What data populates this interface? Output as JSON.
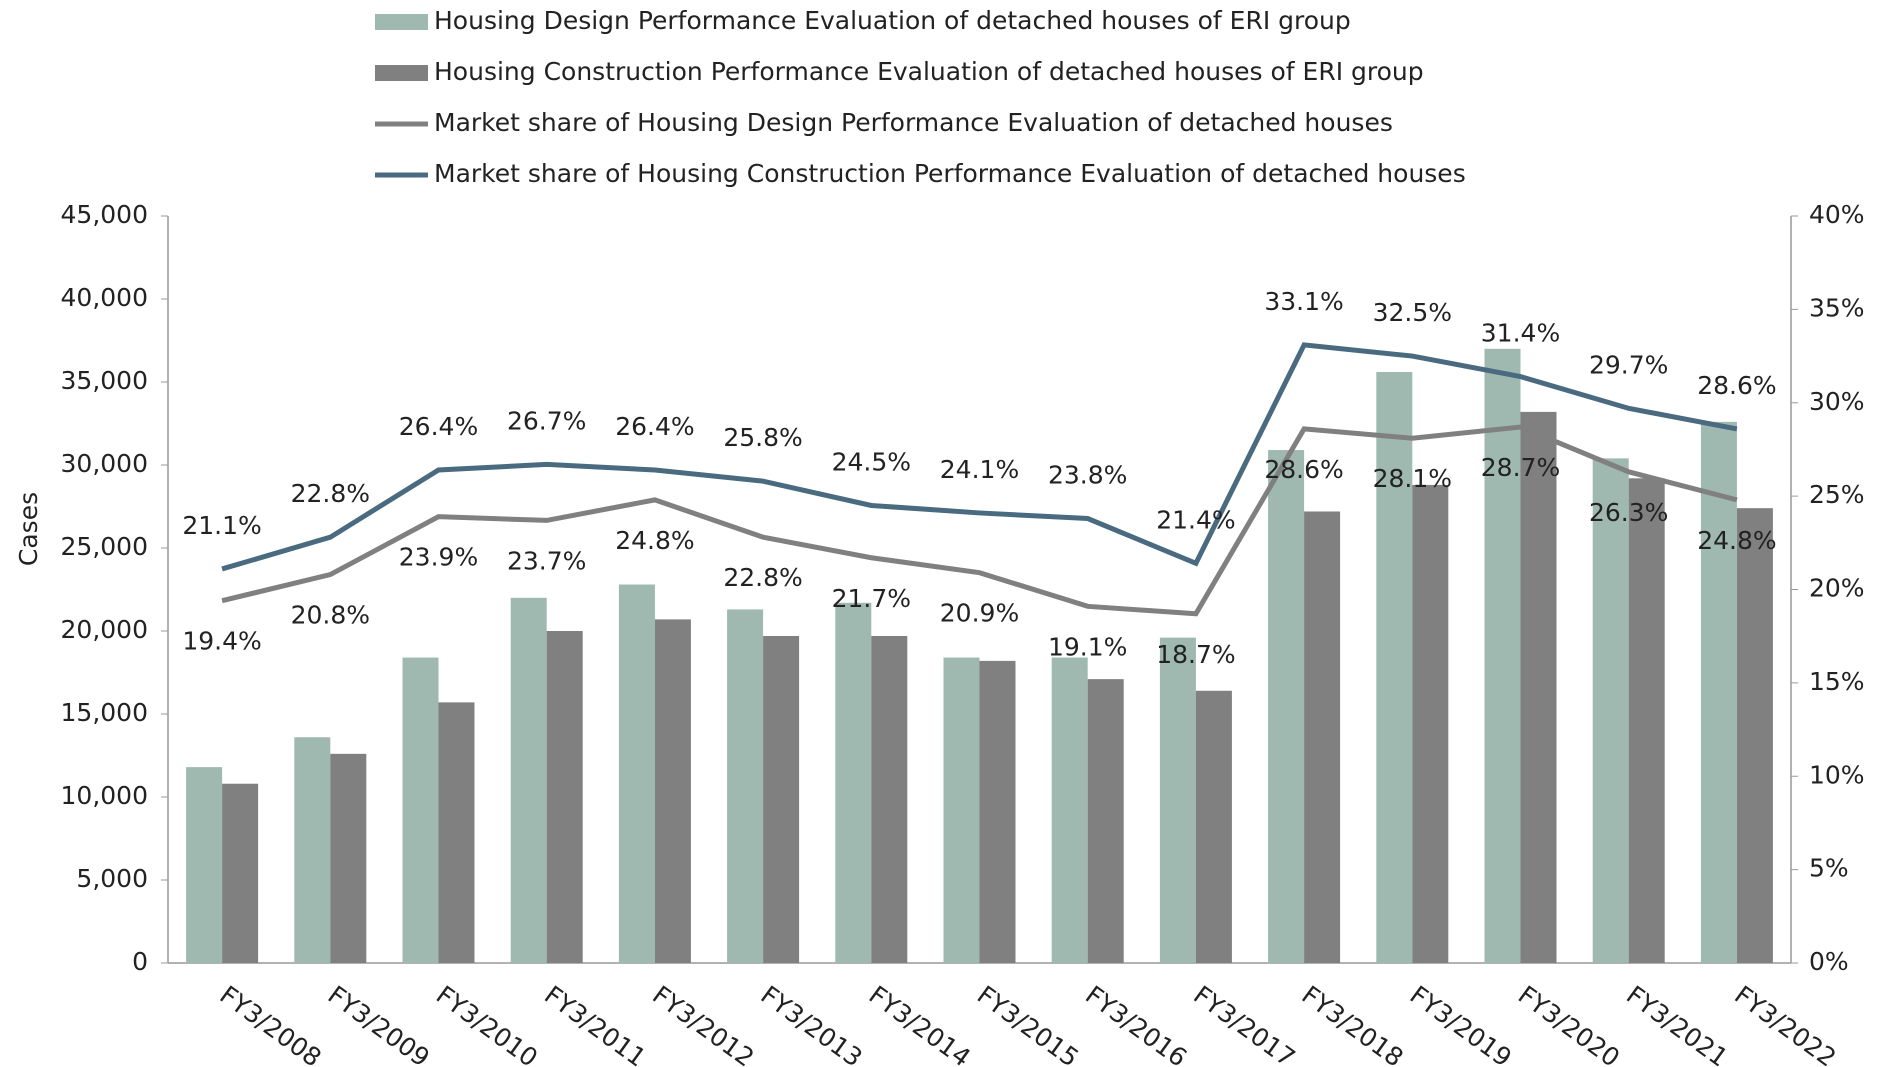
{
  "chart_data": {
    "type": "bar",
    "y_label": "Cases",
    "categories": [
      "FY3/2008",
      "FY3/2009",
      "FY3/2010",
      "FY3/2011",
      "FY3/2012",
      "FY3/2013",
      "FY3/2014",
      "FY3/2015",
      "FY3/2016",
      "FY3/2017",
      "FY3/2018",
      "FY3/2019",
      "FY3/2020",
      "FY3/2021",
      "FY3/2022"
    ],
    "series": [
      {
        "name": "Housing Design Performance Evaluation of detached houses of ERI group",
        "type": "bar",
        "color": "#9fb8b0",
        "values": [
          11800,
          13600,
          18400,
          22000,
          22800,
          21300,
          21700,
          18400,
          18400,
          19600,
          30900,
          35600,
          37000,
          30400,
          32600
        ]
      },
      {
        "name": "Housing Construction Performance Evaluation of detached houses of ERI group",
        "type": "bar",
        "color": "#808080",
        "values": [
          10800,
          12600,
          15700,
          20000,
          20700,
          19700,
          19700,
          18200,
          17100,
          16400,
          27200,
          28800,
          33200,
          29200,
          27400
        ]
      },
      {
        "name": "Market share of Housing Design Performance Evaluation of detached houses",
        "type": "line",
        "axis": "y2",
        "color": "#808080",
        "label_side": "below",
        "values": [
          19.4,
          20.8,
          23.9,
          23.7,
          24.8,
          22.8,
          21.7,
          20.9,
          19.1,
          18.7,
          28.6,
          28.1,
          28.7,
          26.3,
          24.8
        ],
        "value_labels": [
          "19.4%",
          "20.8%",
          "23.9%",
          "23.7%",
          "24.8%",
          "22.8%",
          "21.7%",
          "20.9%",
          "19.1%",
          "18.7%",
          "28.6%",
          "28.1%",
          "28.7%",
          "26.3%",
          "24.8%"
        ]
      },
      {
        "name": "Market share of Housing Construction Performance Evaluation of detached houses",
        "type": "line",
        "axis": "y2",
        "color": "#4a6a80",
        "label_side": "above",
        "values": [
          21.1,
          22.8,
          26.4,
          26.7,
          26.4,
          25.8,
          24.5,
          24.1,
          23.8,
          21.4,
          33.1,
          32.5,
          31.4,
          29.7,
          28.6
        ],
        "value_labels": [
          "21.1%",
          "22.8%",
          "26.4%",
          "26.7%",
          "26.4%",
          "25.8%",
          "24.5%",
          "24.1%",
          "23.8%",
          "21.4%",
          "33.1%",
          "32.5%",
          "31.4%",
          "29.7%",
          "28.6%"
        ]
      }
    ],
    "ylim": [
      0,
      45000
    ],
    "yticks": [
      0,
      {
        "value": 5000,
        "label": "5,000"
      },
      {
        "value": 10000,
        "label": "10,000"
      },
      {
        "value": 15000,
        "label": "15,000"
      },
      {
        "value": 20000,
        "label": "20,000"
      },
      {
        "value": 25000,
        "label": "25,000"
      },
      {
        "value": 30000,
        "label": "30,000"
      },
      {
        "value": 35000,
        "label": "35,000"
      },
      {
        "value": 40000,
        "label": "40,000"
      },
      {
        "value": 45000,
        "label": "45,000"
      }
    ],
    "y2lim": [
      0,
      40
    ],
    "y2ticks": [
      {
        "value": 0,
        "label": "0%"
      },
      {
        "value": 5,
        "label": "5%"
      },
      {
        "value": 10,
        "label": "10%"
      },
      {
        "value": 15,
        "label": "15%"
      },
      {
        "value": 20,
        "label": "20%"
      },
      {
        "value": 25,
        "label": "25%"
      },
      {
        "value": 30,
        "label": "30%"
      },
      {
        "value": 35,
        "label": "35%"
      },
      {
        "value": 40,
        "label": "40%"
      }
    ],
    "legend": "top",
    "grid": false
  }
}
